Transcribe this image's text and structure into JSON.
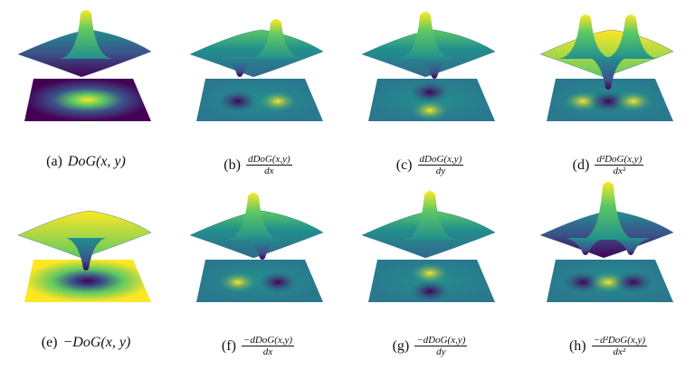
{
  "panels": [
    {
      "label": "(a)",
      "caption": "DoG(x, y)"
    },
    {
      "label": "(b)",
      "numerator": "dDoG(x,y)",
      "denominator": "dx"
    },
    {
      "label": "(c)",
      "numerator": "dDoG(x,y)",
      "denominator": "dy"
    },
    {
      "label": "(d)",
      "numerator": "d²DoG(x,y)",
      "denominator": "dx²"
    },
    {
      "label": "(e)",
      "caption": "−DoG(x, y)"
    },
    {
      "label": "(f)",
      "numerator": "−dDoG(x,y)",
      "denominator": "dx"
    },
    {
      "label": "(g)",
      "numerator": "−dDoG(x,y)",
      "denominator": "dy"
    },
    {
      "label": "(h)",
      "numerator": "−d²DoG(x,y)",
      "denominator": "dx²"
    }
  ]
}
